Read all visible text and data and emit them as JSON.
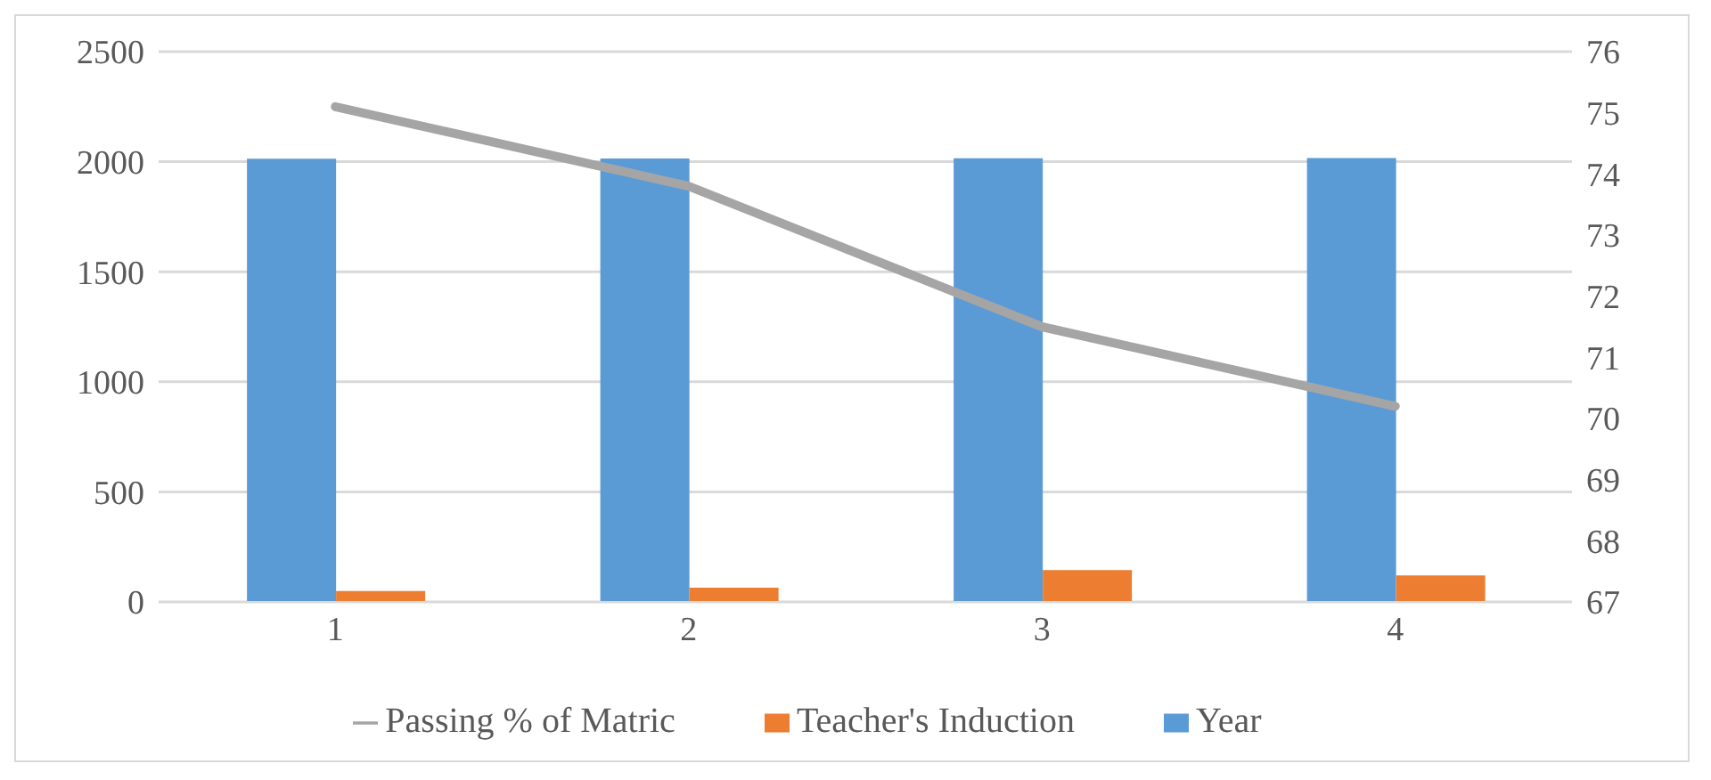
{
  "chart_data": {
    "type": "bar",
    "categories": [
      "1",
      "2",
      "3",
      "4"
    ],
    "series": [
      {
        "name": "Year",
        "color": "#5b9bd5",
        "values": [
          2014,
          2015,
          2016,
          2017
        ]
      },
      {
        "name": "Teacher's Induction",
        "color": "#ed7d31",
        "values": [
          50,
          65,
          145,
          120
        ]
      },
      {
        "name": "Passing % of Matric",
        "type": "line",
        "axis": "y2",
        "color": "#a5a5a5",
        "values": [
          75.1,
          73.8,
          71.5,
          70.2
        ]
      }
    ],
    "ylim": [
      0,
      2500
    ],
    "yticks": [
      0,
      500,
      1000,
      1500,
      2000,
      2500
    ],
    "y2lim": [
      67,
      76
    ],
    "y2ticks": [
      67,
      68,
      69,
      70,
      71,
      72,
      73,
      74,
      75,
      76
    ],
    "grid": "y",
    "legend": "bottom",
    "marker": "none"
  }
}
